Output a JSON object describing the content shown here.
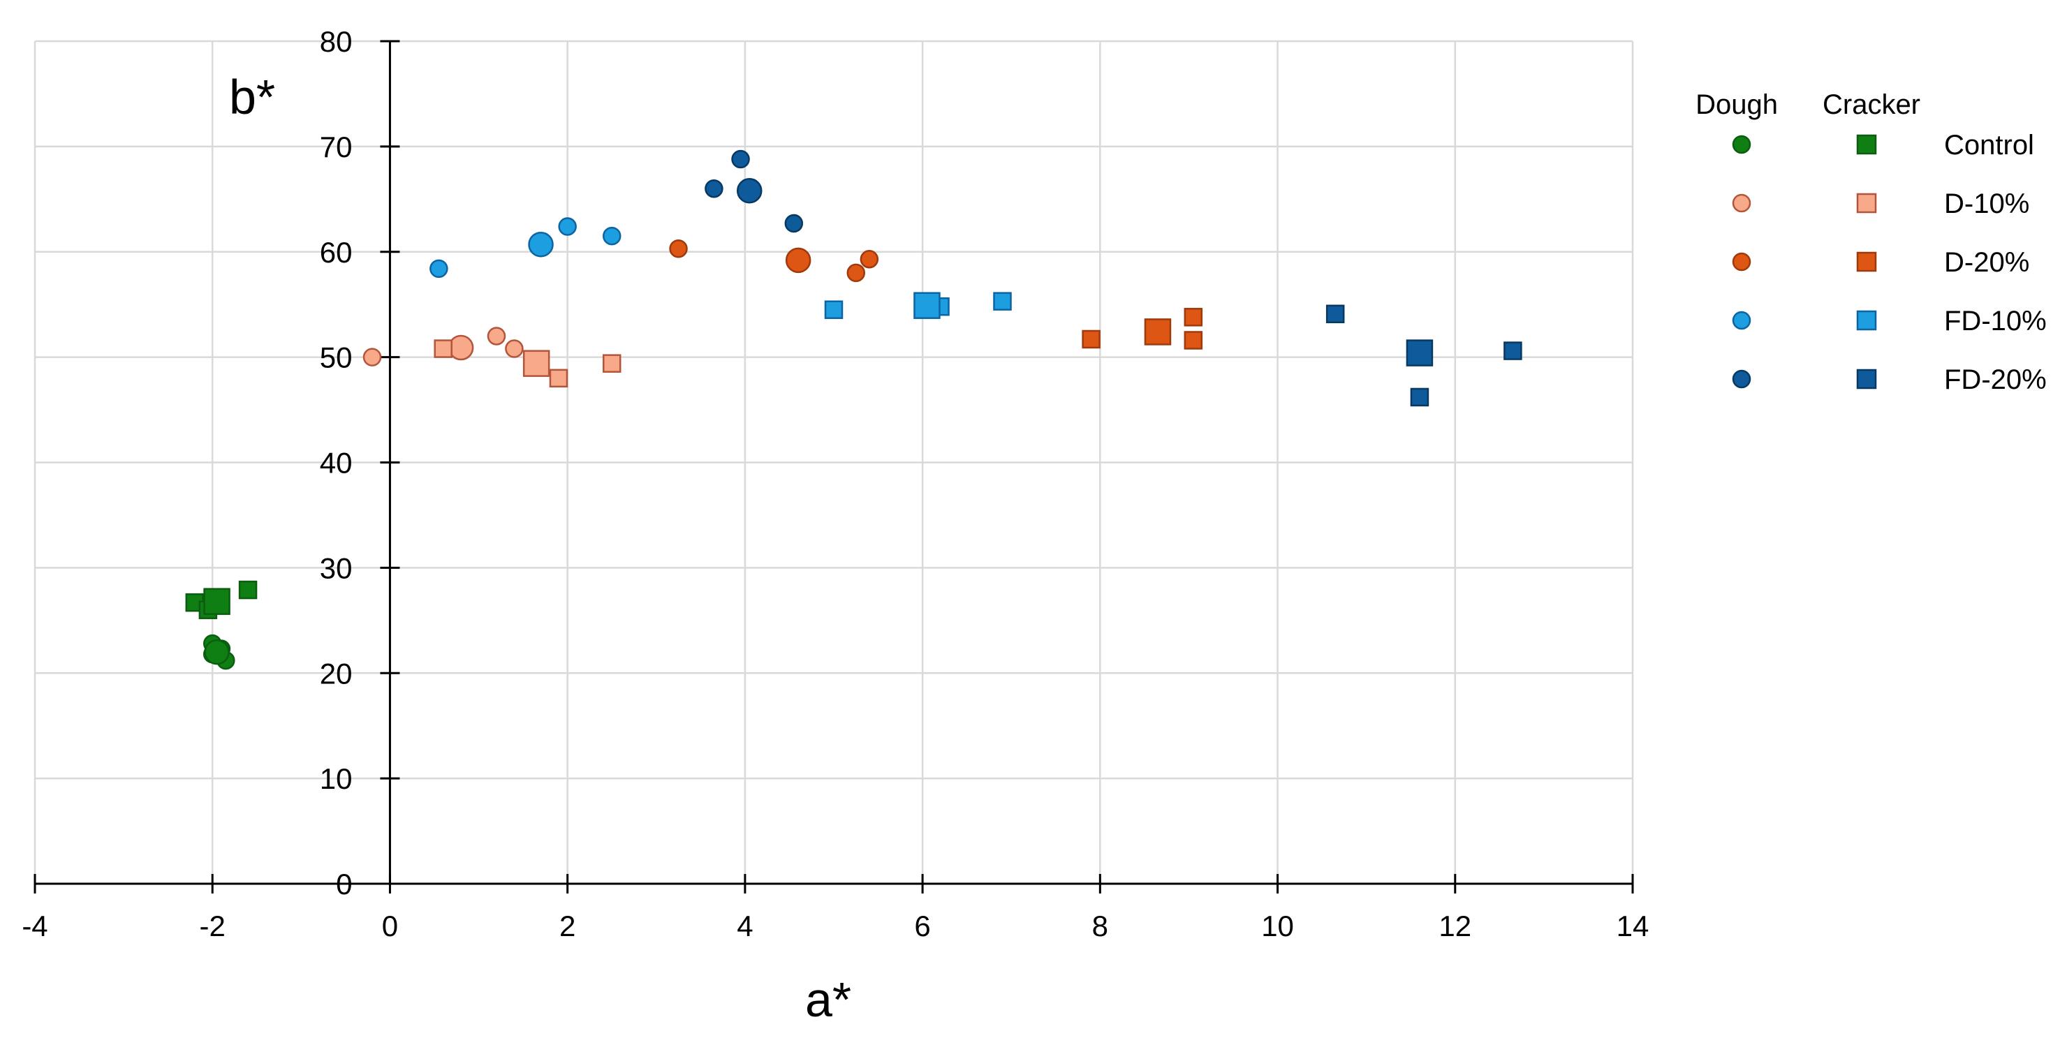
{
  "chart_data": {
    "type": "scatter",
    "title": "",
    "xlabel": "a*",
    "ylabel": "b*",
    "xlim": [
      -4,
      14
    ],
    "ylim": [
      0,
      80
    ],
    "x_ticks": [
      -4,
      -2,
      0,
      2,
      4,
      6,
      8,
      10,
      12,
      14
    ],
    "y_ticks": [
      0,
      10,
      20,
      30,
      40,
      50,
      60,
      70,
      80
    ],
    "x_tick_labels": [
      "-4",
      "-2",
      "0",
      "2",
      "4",
      "6",
      "8",
      "10",
      "12",
      "14"
    ],
    "y_tick_labels": [
      "0",
      "10",
      "20",
      "30",
      "40",
      "50",
      "60",
      "70",
      "80"
    ],
    "grid": true,
    "legend_position": "right",
    "legend": {
      "group_headers": [
        "Dough",
        "Cracker"
      ],
      "entries": [
        "Control",
        "D-10%",
        "D-20%",
        "FD-10%",
        "FD-20%"
      ]
    },
    "series": [
      {
        "name": "Control",
        "group": "Dough",
        "marker": "circle",
        "fill": "#0f7f14",
        "stroke": "#0b5e0f",
        "points": [
          [
            -2.0,
            22.8
          ],
          [
            -1.9,
            22.3
          ],
          [
            -2.0,
            21.8
          ],
          [
            -1.85,
            21.2
          ]
        ],
        "mean": [
          -1.95,
          22.0
        ]
      },
      {
        "name": "Control",
        "group": "Cracker",
        "marker": "square",
        "fill": "#0f7f14",
        "stroke": "#0b5e0f",
        "points": [
          [
            -2.2,
            26.7
          ],
          [
            -2.05,
            26.0
          ],
          [
            -1.6,
            27.9
          ]
        ],
        "mean": [
          -1.95,
          26.8
        ]
      },
      {
        "name": "D-10%",
        "group": "Dough",
        "marker": "circle",
        "fill": "#f8a98a",
        "stroke": "#b3553a",
        "points": [
          [
            -0.2,
            50.0
          ],
          [
            1.2,
            52.0
          ],
          [
            1.4,
            50.8
          ]
        ],
        "mean": [
          0.8,
          50.9
        ]
      },
      {
        "name": "D-10%",
        "group": "Cracker",
        "marker": "square",
        "fill": "#f8a98a",
        "stroke": "#b3553a",
        "points": [
          [
            0.6,
            50.8
          ],
          [
            1.9,
            48.0
          ],
          [
            2.5,
            49.4
          ]
        ],
        "mean": [
          1.65,
          49.4
        ]
      },
      {
        "name": "D-20%",
        "group": "Dough",
        "marker": "circle",
        "fill": "#dd5614",
        "stroke": "#a03a0c",
        "points": [
          [
            3.25,
            60.3
          ],
          [
            5.25,
            58.0
          ],
          [
            5.4,
            59.3
          ]
        ],
        "mean": [
          4.6,
          59.2
        ]
      },
      {
        "name": "D-20%",
        "group": "Cracker",
        "marker": "square",
        "fill": "#dd5614",
        "stroke": "#a03a0c",
        "points": [
          [
            7.9,
            51.7
          ],
          [
            9.05,
            53.8
          ],
          [
            9.05,
            51.6
          ]
        ],
        "mean": [
          8.65,
          52.4
        ]
      },
      {
        "name": "FD-10%",
        "group": "Dough",
        "marker": "circle",
        "fill": "#1c9ee0",
        "stroke": "#0d64a2",
        "points": [
          [
            0.55,
            58.4
          ],
          [
            2.0,
            62.4
          ],
          [
            2.5,
            61.5
          ]
        ],
        "mean": [
          1.7,
          60.7
        ]
      },
      {
        "name": "FD-10%",
        "group": "Cracker",
        "marker": "square",
        "fill": "#1c9ee0",
        "stroke": "#0d64a2",
        "points": [
          [
            5.0,
            54.5
          ],
          [
            6.2,
            54.8
          ],
          [
            6.9,
            55.3
          ]
        ],
        "mean": [
          6.05,
          54.9
        ]
      },
      {
        "name": "FD-20%",
        "group": "Dough",
        "marker": "circle",
        "fill": "#0f5a9a",
        "stroke": "#073963",
        "points": [
          [
            3.65,
            66.0
          ],
          [
            3.95,
            68.8
          ],
          [
            4.55,
            62.7
          ]
        ],
        "mean": [
          4.05,
          65.8
        ]
      },
      {
        "name": "FD-20%",
        "group": "Cracker",
        "marker": "square",
        "fill": "#0f5a9a",
        "stroke": "#073963",
        "points": [
          [
            10.65,
            54.1
          ],
          [
            11.6,
            46.2
          ],
          [
            12.65,
            50.6
          ]
        ],
        "mean": [
          11.6,
          50.4
        ]
      }
    ]
  }
}
